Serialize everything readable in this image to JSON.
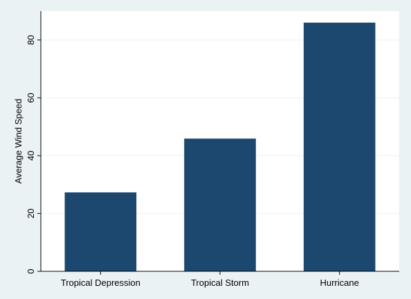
{
  "chart_data": {
    "type": "bar",
    "categories": [
      "Tropical Depression",
      "Tropical Storm",
      "Hurricane"
    ],
    "values": [
      27.3,
      45.9,
      86.0
    ],
    "title": "",
    "xlabel": "",
    "ylabel": "Average Wind Speed",
    "ylim": [
      0,
      90
    ],
    "yticks": [
      0,
      20,
      40,
      60,
      80
    ],
    "grid": true,
    "legend": "none",
    "bar_color": "#1c4870",
    "background_color": "#eaf2f3",
    "plot_background_color": "#ffffff",
    "grid_color": "#eaf2f3"
  }
}
